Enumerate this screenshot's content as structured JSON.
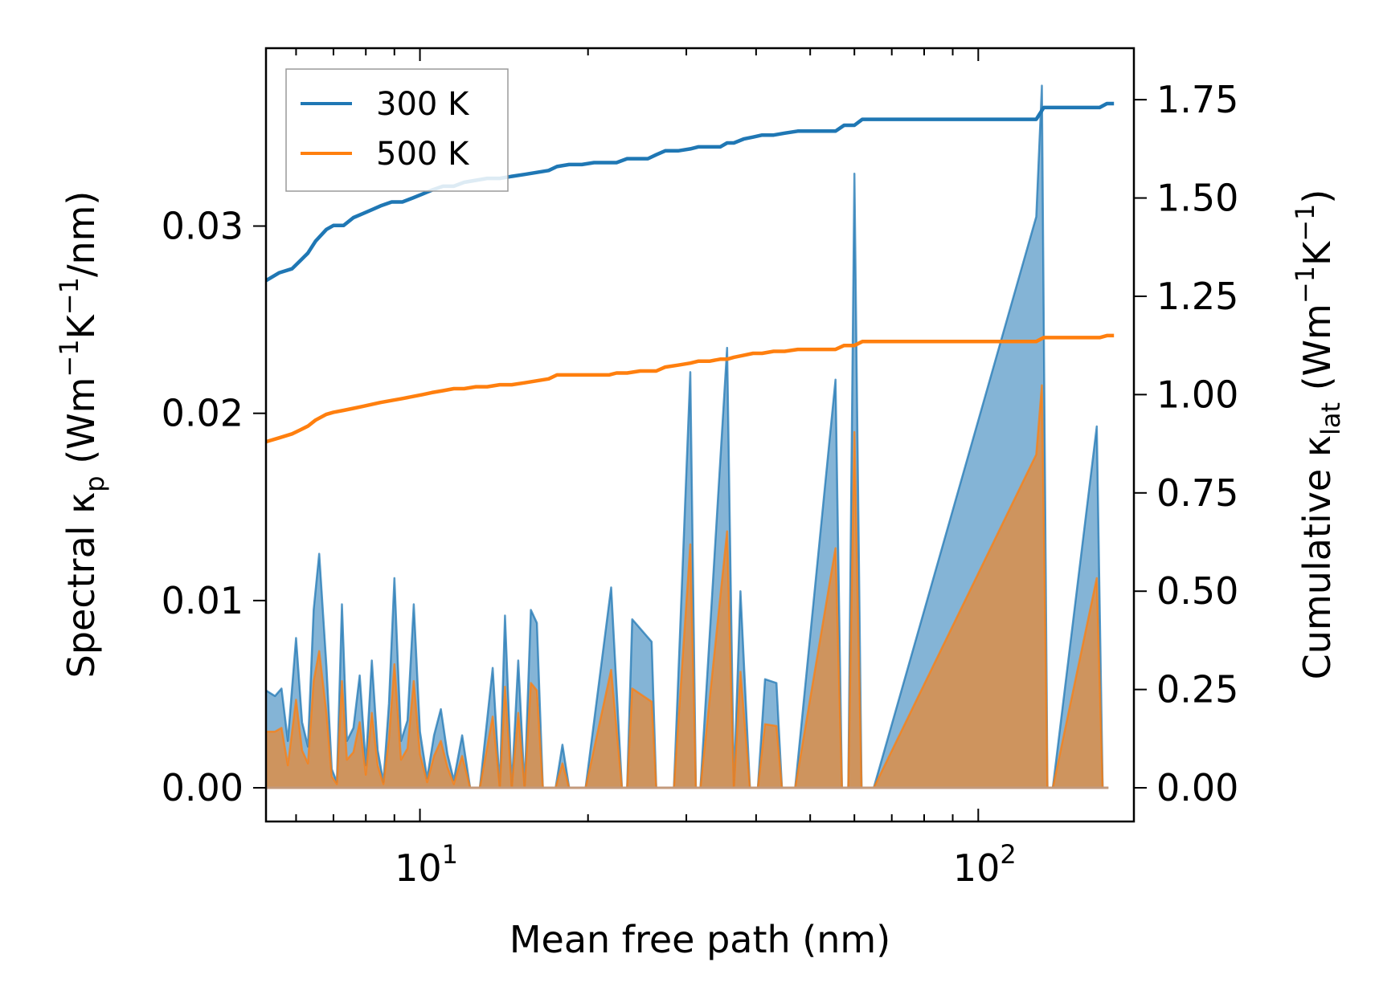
{
  "chart_data": {
    "type": "line",
    "xscale": "log",
    "xlim": [
      5.3,
      190
    ],
    "xlabel": "Mean free path (nm)",
    "x_tick_labels": [
      {
        "value": 10,
        "base": "10",
        "exp": "1"
      },
      {
        "value": 100,
        "base": "10",
        "exp": "2"
      }
    ],
    "left_axis": {
      "ylim": [
        -0.0018,
        0.0395
      ],
      "ticks": [
        0.0,
        0.01,
        0.02,
        0.03
      ],
      "tick_labels": [
        "0.00",
        "0.01",
        "0.02",
        "0.03"
      ],
      "label_parts": {
        "a": "Spectral κ",
        "sub": "p",
        "b": " (Wm",
        "sup1": "−1",
        "c": "K",
        "sup2": "−1",
        "d": "/nm)"
      }
    },
    "right_axis": {
      "ylim": [
        -0.0857,
        1.881
      ],
      "ticks": [
        0.0,
        0.25,
        0.5,
        0.75,
        1.0,
        1.25,
        1.5,
        1.75
      ],
      "tick_labels": [
        "0.00",
        "0.25",
        "0.50",
        "0.75",
        "1.00",
        "1.25",
        "1.50",
        "1.75"
      ],
      "label_parts": {
        "a": "Cumulative κ",
        "sub": "lat",
        "b": " (Wm",
        "sup1": "−1",
        "c": "K",
        "sup2": "−1",
        "d": ")"
      }
    },
    "legend": {
      "position": "top-left",
      "entries": [
        "300 K",
        "500 K"
      ]
    },
    "colors": {
      "s300": "#1f77b4",
      "s500": "#ff7f0e"
    },
    "spectral_300K": {
      "x": [
        5.3,
        5.5,
        5.65,
        5.8,
        6.0,
        6.15,
        6.3,
        6.45,
        6.6,
        6.8,
        6.95,
        7.1,
        7.25,
        7.4,
        7.6,
        7.8,
        8.0,
        8.2,
        8.4,
        8.6,
        8.8,
        9.0,
        9.25,
        9.5,
        9.75,
        10.0,
        10.3,
        10.6,
        10.9,
        11.2,
        11.5,
        11.9,
        12.3,
        12.8,
        13.5,
        13.9,
        14.2,
        14.6,
        15.0,
        15.4,
        15.8,
        16.2,
        16.6,
        17.0,
        17.5,
        18.0,
        18.5,
        19.0,
        19.4,
        19.8,
        22.0,
        23.0,
        23.5,
        24.0,
        26.0,
        26.5,
        27.5,
        28.5,
        30.5,
        31.2,
        31.8,
        35.5,
        36.5,
        37.5,
        39.0,
        40.3,
        41.5,
        43.5,
        44.5,
        45.5,
        47.0,
        55.5,
        57.0,
        58.5,
        60.0,
        61.8,
        63.5,
        65.0,
        127.0,
        130.0,
        133.0,
        136.0,
        163.0,
        167.0,
        171.0
      ],
      "y": [
        0.0052,
        0.0049,
        0.0053,
        0.0025,
        0.008,
        0.0035,
        0.0022,
        0.0095,
        0.0125,
        0.0065,
        0.001,
        0.0003,
        0.0098,
        0.0025,
        0.0032,
        0.006,
        0.0012,
        0.0068,
        0.002,
        0.0003,
        0.0045,
        0.0112,
        0.0025,
        0.0036,
        0.0098,
        0.003,
        0.0005,
        0.0028,
        0.0042,
        0.0018,
        0.0004,
        0.0028,
        0.0,
        0.0,
        0.0064,
        0.0,
        0.0092,
        0.0,
        0.0068,
        0.0,
        0.0095,
        0.0088,
        0.0,
        0.0,
        0.0,
        0.0023,
        0.0,
        0.0,
        0.0,
        0.0,
        0.0107,
        0.0,
        0.0,
        0.009,
        0.0078,
        0.0,
        0.0,
        0.0,
        0.0222,
        0.0,
        0.0,
        0.0235,
        0.0,
        0.0105,
        0.0,
        0.0,
        0.0058,
        0.0056,
        0.0,
        0.0,
        0.0,
        0.0218,
        0.0,
        0.0,
        0.0328,
        0.0,
        0.0,
        0.0,
        0.0305,
        0.0375,
        0.0,
        0.0,
        0.0193,
        0.0,
        0.0
      ]
    },
    "spectral_500K": {
      "x": [
        5.3,
        5.5,
        5.65,
        5.8,
        6.0,
        6.15,
        6.3,
        6.45,
        6.6,
        6.8,
        6.95,
        7.1,
        7.25,
        7.4,
        7.6,
        7.8,
        8.0,
        8.2,
        8.4,
        8.6,
        8.8,
        9.0,
        9.25,
        9.5,
        9.75,
        10.0,
        10.3,
        10.6,
        10.9,
        11.2,
        11.5,
        11.9,
        12.3,
        12.8,
        13.5,
        13.9,
        14.2,
        14.6,
        15.0,
        15.4,
        15.8,
        16.2,
        16.6,
        17.0,
        17.5,
        18.0,
        18.5,
        19.0,
        19.4,
        19.8,
        22.0,
        23.0,
        23.5,
        24.0,
        26.0,
        26.5,
        27.5,
        28.5,
        30.5,
        31.2,
        31.8,
        35.5,
        36.5,
        37.5,
        39.0,
        40.3,
        41.5,
        43.5,
        44.5,
        45.5,
        47.0,
        55.5,
        57.0,
        58.5,
        60.0,
        61.8,
        63.5,
        65.0,
        127.0,
        130.0,
        133.0,
        136.0,
        163.0,
        167.0,
        171.0
      ],
      "y": [
        0.003,
        0.003,
        0.0032,
        0.0012,
        0.0047,
        0.002,
        0.0013,
        0.0057,
        0.0073,
        0.004,
        0.0006,
        0.0002,
        0.0057,
        0.0015,
        0.0019,
        0.0035,
        0.0007,
        0.004,
        0.0012,
        0.0002,
        0.0026,
        0.0066,
        0.0015,
        0.0021,
        0.0057,
        0.0018,
        0.0003,
        0.0017,
        0.0025,
        0.0011,
        0.0002,
        0.0017,
        0.0,
        0.0,
        0.0038,
        0.0,
        0.0054,
        0.0,
        0.004,
        0.0,
        0.0056,
        0.0052,
        0.0,
        0.0,
        0.0,
        0.0013,
        0.0,
        0.0,
        0.0,
        0.0,
        0.0063,
        0.0,
        0.0,
        0.0053,
        0.0046,
        0.0,
        0.0,
        0.0,
        0.013,
        0.0,
        0.0,
        0.0137,
        0.0,
        0.0062,
        0.0,
        0.0,
        0.0034,
        0.0033,
        0.0,
        0.0,
        0.0,
        0.0128,
        0.0,
        0.0,
        0.019,
        0.0,
        0.0,
        0.0,
        0.0178,
        0.0215,
        0.0,
        0.0,
        0.0112,
        0.0,
        0.0
      ]
    },
    "cumulative_300K": {
      "x": [
        5.3,
        5.6,
        5.9,
        6.1,
        6.3,
        6.5,
        6.8,
        7.0,
        7.3,
        7.6,
        7.9,
        8.2,
        8.5,
        8.9,
        9.3,
        9.7,
        10.1,
        10.5,
        11.0,
        11.5,
        12.0,
        12.6,
        13.2,
        13.9,
        14.6,
        15.4,
        16.2,
        17.0,
        17.6,
        18.5,
        19.5,
        20.5,
        21.8,
        22.5,
        23.5,
        24.8,
        25.6,
        26.5,
        27.5,
        29.0,
        30.5,
        31.5,
        33.0,
        34.5,
        35.5,
        36.5,
        38.0,
        39.5,
        41.0,
        43.0,
        45.0,
        47.5,
        50.0,
        53.0,
        55.5,
        57.5,
        60.0,
        62.0,
        64.0,
        66.0,
        80.0,
        100.0,
        127.0,
        131.0,
        133.5,
        160.0,
        165.0,
        170.0,
        175.0
      ],
      "y": [
        1.29,
        1.31,
        1.32,
        1.34,
        1.36,
        1.39,
        1.42,
        1.43,
        1.43,
        1.45,
        1.46,
        1.47,
        1.48,
        1.49,
        1.49,
        1.5,
        1.51,
        1.52,
        1.53,
        1.53,
        1.54,
        1.545,
        1.55,
        1.55,
        1.555,
        1.56,
        1.565,
        1.57,
        1.58,
        1.585,
        1.585,
        1.59,
        1.59,
        1.59,
        1.6,
        1.6,
        1.6,
        1.61,
        1.62,
        1.62,
        1.625,
        1.63,
        1.63,
        1.63,
        1.64,
        1.64,
        1.65,
        1.655,
        1.66,
        1.66,
        1.665,
        1.67,
        1.67,
        1.67,
        1.67,
        1.685,
        1.685,
        1.7,
        1.7,
        1.7,
        1.7,
        1.7,
        1.7,
        1.73,
        1.73,
        1.73,
        1.73,
        1.74,
        1.74
      ]
    },
    "cumulative_500K": {
      "x": [
        5.3,
        5.6,
        5.9,
        6.1,
        6.3,
        6.5,
        6.8,
        7.0,
        7.3,
        7.6,
        7.9,
        8.2,
        8.5,
        8.9,
        9.3,
        9.7,
        10.1,
        10.5,
        11.0,
        11.5,
        12.0,
        12.6,
        13.2,
        13.9,
        14.6,
        15.4,
        16.2,
        17.0,
        17.6,
        18.5,
        19.5,
        20.5,
        21.8,
        22.5,
        23.5,
        24.8,
        25.6,
        26.5,
        27.5,
        29.0,
        30.5,
        31.5,
        33.0,
        34.5,
        35.5,
        36.5,
        38.0,
        39.5,
        41.0,
        43.0,
        45.0,
        47.5,
        50.0,
        53.0,
        55.5,
        57.5,
        60.0,
        62.0,
        64.0,
        66.0,
        80.0,
        100.0,
        127.0,
        131.0,
        133.5,
        160.0,
        165.0,
        170.0,
        175.0
      ],
      "y": [
        0.88,
        0.89,
        0.9,
        0.91,
        0.92,
        0.935,
        0.95,
        0.955,
        0.96,
        0.965,
        0.97,
        0.975,
        0.98,
        0.985,
        0.99,
        0.995,
        1.0,
        1.005,
        1.01,
        1.015,
        1.015,
        1.02,
        1.02,
        1.025,
        1.025,
        1.03,
        1.035,
        1.04,
        1.05,
        1.05,
        1.05,
        1.05,
        1.05,
        1.055,
        1.055,
        1.06,
        1.06,
        1.06,
        1.07,
        1.075,
        1.08,
        1.085,
        1.085,
        1.09,
        1.09,
        1.095,
        1.1,
        1.105,
        1.105,
        1.11,
        1.11,
        1.115,
        1.115,
        1.115,
        1.115,
        1.125,
        1.125,
        1.135,
        1.135,
        1.135,
        1.135,
        1.135,
        1.135,
        1.145,
        1.145,
        1.145,
        1.145,
        1.15,
        1.15
      ]
    }
  }
}
